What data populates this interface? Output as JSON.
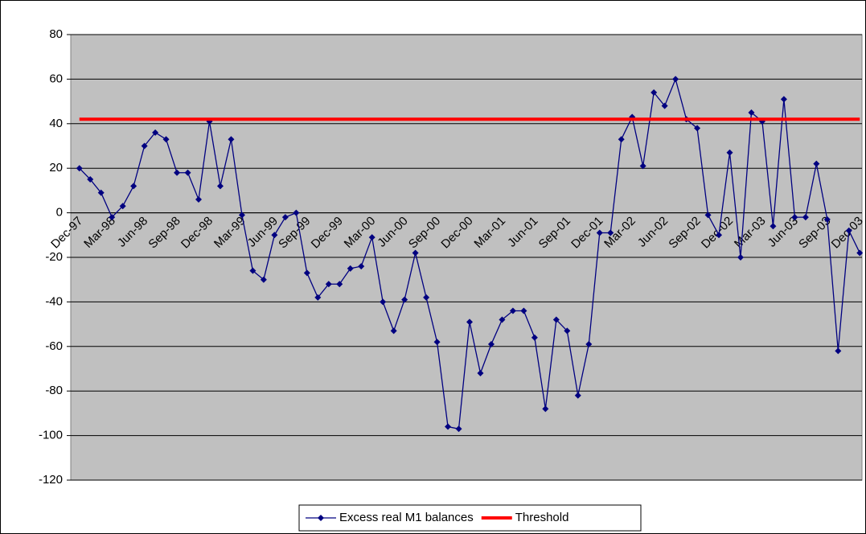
{
  "chart_data": {
    "type": "line",
    "categories": [
      "Dec-97",
      null,
      null,
      "Mar-98",
      null,
      null,
      "Jun-98",
      null,
      null,
      "Sep-98",
      null,
      null,
      "Dec-98",
      null,
      null,
      "Mar-99",
      null,
      null,
      "Jun-99",
      null,
      null,
      "Sep-99",
      null,
      null,
      "Dec-99",
      null,
      null,
      "Mar-00",
      null,
      null,
      "Jun-00",
      null,
      null,
      "Sep-00",
      null,
      null,
      "Dec-00",
      null,
      null,
      "Mar-01",
      null,
      null,
      "Jun-01",
      null,
      null,
      "Sep-01",
      null,
      null,
      "Dec-01",
      null,
      null,
      "Mar-02",
      null,
      null,
      "Jun-02",
      null,
      null,
      "Sep-02",
      null,
      null,
      "Dec-02",
      null,
      null,
      "Mar-03",
      null,
      null,
      "Jun-03",
      null,
      null,
      "Sep-03",
      null,
      null,
      "Dec-03"
    ],
    "series": [
      {
        "name": "Excess real M1 balances",
        "color": "#000080",
        "marker": "diamond",
        "values": [
          20,
          15,
          9,
          -2,
          3,
          12,
          30,
          36,
          33,
          18,
          18,
          6,
          41,
          12,
          33,
          -1,
          -26,
          -30,
          -10,
          -2,
          0,
          -27,
          -38,
          -32,
          -32,
          -25,
          -24,
          -11,
          -40,
          -53,
          -39,
          -18,
          -38,
          -58,
          -96,
          -97,
          -49,
          -72,
          -59,
          -48,
          -44,
          -44,
          -56,
          -88,
          -48,
          -53,
          -82,
          -59,
          -9,
          -9,
          33,
          43,
          21,
          54,
          48,
          60,
          42,
          38,
          -1,
          -10,
          27,
          -20,
          45,
          41,
          -6,
          51,
          -2,
          -2,
          22,
          -3,
          -62,
          -8,
          -18
        ]
      },
      {
        "name": "Threshold",
        "color": "#ff0000",
        "marker": "none",
        "values": [
          42,
          42,
          42,
          42,
          42,
          42,
          42,
          42,
          42,
          42,
          42,
          42,
          42,
          42,
          42,
          42,
          42,
          42,
          42,
          42,
          42,
          42,
          42,
          42,
          42,
          42,
          42,
          42,
          42,
          42,
          42,
          42,
          42,
          42,
          42,
          42,
          42,
          42,
          42,
          42,
          42,
          42,
          42,
          42,
          42,
          42,
          42,
          42,
          42,
          42,
          42,
          42,
          42,
          42,
          42,
          42,
          42,
          42,
          42,
          42,
          42,
          42,
          42,
          42,
          42,
          42,
          42,
          42,
          42,
          42,
          42,
          42,
          42
        ]
      }
    ],
    "ylim": [
      -120,
      80
    ],
    "yticks": [
      -120,
      -100,
      -80,
      -60,
      -40,
      -20,
      0,
      20,
      40,
      60,
      80
    ],
    "grid": true,
    "legend": "bottom",
    "plot_background": "#c0c0c0"
  }
}
